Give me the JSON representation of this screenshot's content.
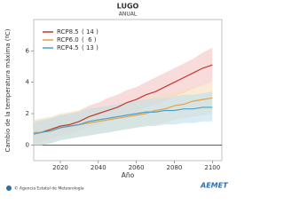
{
  "chart_data": {
    "type": "line",
    "title": "LUGO",
    "subtitle": "ANUAL",
    "x_label": "Año",
    "y_label": "Cambio de la temperatura máxima (ºC)",
    "x": [
      2006,
      2010,
      2015,
      2020,
      2025,
      2030,
      2035,
      2040,
      2045,
      2050,
      2055,
      2060,
      2065,
      2070,
      2075,
      2080,
      2085,
      2090,
      2095,
      2100
    ],
    "xlim": [
      2006,
      2105
    ],
    "xticks": [
      2020,
      2040,
      2060,
      2080,
      2100
    ],
    "ylim": [
      -1,
      8
    ],
    "yticks": [
      0,
      2,
      4,
      6
    ],
    "series": [
      {
        "name": "RCP8.5",
        "models": "( 14 )",
        "color": "#c0392b",
        "band_color": "#f4c4c4",
        "values": [
          0.7,
          0.8,
          1.0,
          1.2,
          1.3,
          1.5,
          1.8,
          2.0,
          2.2,
          2.4,
          2.7,
          2.9,
          3.2,
          3.4,
          3.7,
          4.0,
          4.3,
          4.6,
          4.9,
          5.1
        ],
        "band_low": [
          0.1,
          0.2,
          0.4,
          0.6,
          0.7,
          0.9,
          1.1,
          1.3,
          1.5,
          1.7,
          1.9,
          2.1,
          2.4,
          2.6,
          2.8,
          3.1,
          3.3,
          3.6,
          3.8,
          4.0
        ],
        "band_high": [
          1.4,
          1.5,
          1.7,
          1.9,
          2.0,
          2.2,
          2.5,
          2.7,
          3.0,
          3.2,
          3.5,
          3.7,
          4.0,
          4.3,
          4.6,
          4.9,
          5.2,
          5.5,
          5.9,
          6.2
        ]
      },
      {
        "name": "RCP6.0",
        "models": "(  6 )",
        "color": "#e8a040",
        "band_color": "#f8ddb8",
        "values": [
          0.8,
          0.8,
          0.9,
          1.1,
          1.2,
          1.3,
          1.4,
          1.5,
          1.6,
          1.7,
          1.8,
          1.9,
          2.0,
          2.2,
          2.3,
          2.5,
          2.6,
          2.8,
          2.9,
          3.0
        ],
        "band_low": [
          0.0,
          0.0,
          0.1,
          0.3,
          0.4,
          0.5,
          0.6,
          0.7,
          0.8,
          0.9,
          1.0,
          1.1,
          1.2,
          1.3,
          1.4,
          1.6,
          1.7,
          1.8,
          1.9,
          2.0
        ],
        "band_high": [
          1.6,
          1.7,
          1.8,
          2.0,
          2.1,
          2.2,
          2.3,
          2.4,
          2.5,
          2.6,
          2.7,
          2.8,
          2.9,
          3.1,
          3.2,
          3.4,
          3.5,
          3.7,
          3.8,
          4.0
        ]
      },
      {
        "name": "RCP4.5",
        "models": "( 13 )",
        "color": "#4aa0c8",
        "band_color": "#bfe0ee",
        "values": [
          0.7,
          0.8,
          0.9,
          1.1,
          1.2,
          1.3,
          1.5,
          1.6,
          1.7,
          1.8,
          1.9,
          2.0,
          2.1,
          2.1,
          2.2,
          2.2,
          2.3,
          2.3,
          2.4,
          2.4
        ],
        "band_low": [
          0.0,
          0.0,
          0.1,
          0.3,
          0.4,
          0.5,
          0.6,
          0.7,
          0.8,
          0.9,
          1.0,
          1.1,
          1.2,
          1.2,
          1.3,
          1.3,
          1.4,
          1.4,
          1.5,
          1.5
        ],
        "band_high": [
          1.5,
          1.6,
          1.7,
          1.9,
          2.0,
          2.1,
          2.3,
          2.4,
          2.5,
          2.6,
          2.7,
          2.8,
          2.9,
          3.0,
          3.0,
          3.1,
          3.2,
          3.2,
          3.3,
          3.4
        ]
      }
    ]
  },
  "footer": {
    "credit": "© Agencia Estatal de Meteorología",
    "logo": "AEMET"
  }
}
